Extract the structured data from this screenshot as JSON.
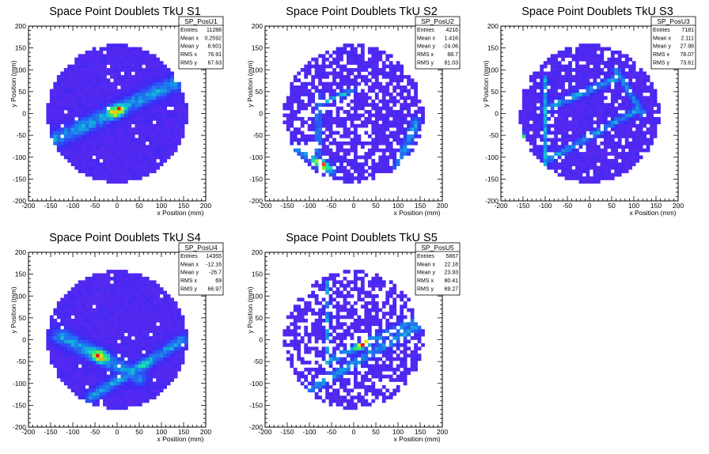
{
  "chart_data": [
    {
      "type": "heatmap",
      "title": "Space Point Doublets TkU S1",
      "xlabel": "x Position (mm)",
      "ylabel": "y Position (mm)",
      "xlim": [
        -200,
        200
      ],
      "ylim": [
        -200,
        200
      ],
      "xticks": [
        "-200",
        "-150",
        "-100",
        "-50",
        "0",
        "50",
        "100",
        "150",
        "200"
      ],
      "yticks": [
        "-200",
        "-150",
        "-100",
        "-50",
        "0",
        "50",
        "100",
        "150",
        "200"
      ],
      "stats": {
        "name": "SP_PosU1",
        "rows": [
          {
            "label": "Entries",
            "value": "11288"
          },
          {
            "label": "Mean x",
            "value": "0.2592"
          },
          {
            "label": "Mean y",
            "value": "8.601"
          },
          {
            "label": "RMS x",
            "value": "76.91"
          },
          {
            "label": "RMS y",
            "value": "67.63"
          }
        ]
      },
      "features": [
        {
          "kind": "band",
          "from": [
            -140,
            -60
          ],
          "to": [
            130,
            70
          ],
          "width": 14,
          "peak": [
            0,
            5
          ],
          "peak_level": 1.0
        }
      ],
      "sparsity": 0.03
    },
    {
      "type": "heatmap",
      "title": "Space Point Doublets TkU S2",
      "xlabel": "x Position (mm)",
      "ylabel": "y Position (mm)",
      "xlim": [
        -200,
        200
      ],
      "ylim": [
        -200,
        200
      ],
      "xticks": [
        "-200",
        "-150",
        "-100",
        "-50",
        "0",
        "50",
        "100",
        "150",
        "200"
      ],
      "yticks": [
        "-200",
        "-150",
        "-100",
        "-50",
        "0",
        "50",
        "100",
        "150",
        "200"
      ],
      "stats": {
        "name": "SP_PosU2",
        "rows": [
          {
            "label": "Entries",
            "value": "4216"
          },
          {
            "label": "Mean x",
            "value": "1.416"
          },
          {
            "label": "Mean y",
            "value": "-24.06"
          },
          {
            "label": "RMS x",
            "value": "88.7"
          },
          {
            "label": "RMS y",
            "value": "81.03"
          }
        ]
      },
      "features": [
        {
          "kind": "band",
          "from": [
            -80,
            -90
          ],
          "to": [
            -80,
            40
          ],
          "width": 5,
          "peak": [
            -80,
            -60
          ],
          "peak_level": 0.5
        },
        {
          "kind": "band",
          "from": [
            -80,
            20
          ],
          "to": [
            0,
            55
          ],
          "width": 5,
          "peak": [
            -20,
            35
          ],
          "peak_level": 0.6
        },
        {
          "kind": "band",
          "from": [
            -130,
            -80
          ],
          "to": [
            -50,
            -130
          ],
          "width": 9,
          "peak": [
            -75,
            -120
          ],
          "peak_level": 1.0
        },
        {
          "kind": "band",
          "from": [
            100,
            -120
          ],
          "to": [
            140,
            -20
          ],
          "width": 8,
          "peak": [
            120,
            -80
          ],
          "peak_level": 0.45
        }
      ],
      "sparsity": 0.28
    },
    {
      "type": "heatmap",
      "title": "Space Point Doublets TkU S3",
      "xlabel": "x Position (mm)",
      "ylabel": "y Position (mm)",
      "xlim": [
        -200,
        200
      ],
      "ylim": [
        -200,
        200
      ],
      "xticks": [
        "-200",
        "-150",
        "-100",
        "-50",
        "0",
        "50",
        "100",
        "150",
        "200"
      ],
      "yticks": [
        "-200",
        "-150",
        "-100",
        "-50",
        "0",
        "50",
        "100",
        "150",
        "200"
      ],
      "stats": {
        "name": "SP_PosU3",
        "rows": [
          {
            "label": "Entries",
            "value": "7181"
          },
          {
            "label": "Mean x",
            "value": "2.111"
          },
          {
            "label": "Mean y",
            "value": "27.98"
          },
          {
            "label": "RMS x",
            "value": "78.07"
          },
          {
            "label": "RMS y",
            "value": "73.61"
          }
        ]
      },
      "features": [
        {
          "kind": "band",
          "from": [
            -100,
            -120
          ],
          "to": [
            -100,
            80
          ],
          "width": 5,
          "peak": [
            -100,
            10
          ],
          "peak_level": 0.55
        },
        {
          "kind": "band",
          "from": [
            -100,
            10
          ],
          "to": [
            60,
            80
          ],
          "width": 7,
          "peak": [
            -30,
            45
          ],
          "peak_level": 0.55
        },
        {
          "kind": "band",
          "from": [
            -100,
            -110
          ],
          "to": [
            110,
            10
          ],
          "width": 6,
          "peak": [
            20,
            -40
          ],
          "peak_level": 0.5
        },
        {
          "kind": "band",
          "from": [
            60,
            100
          ],
          "to": [
            120,
            0
          ],
          "width": 6,
          "peak": [
            90,
            60
          ],
          "peak_level": 0.45
        },
        {
          "kind": "band",
          "from": [
            -160,
            -70
          ],
          "to": [
            -150,
            -50
          ],
          "width": 5,
          "peak": [
            -155,
            -65
          ],
          "peak_level": 1.0
        }
      ],
      "sparsity": 0.12
    },
    {
      "type": "heatmap",
      "title": "Space Point Doublets TkU S4",
      "xlabel": "x Position (mm)",
      "ylabel": "y Position (mm)",
      "xlim": [
        -200,
        200
      ],
      "ylim": [
        -200,
        200
      ],
      "xticks": [
        "-200",
        "-150",
        "-100",
        "-50",
        "0",
        "50",
        "100",
        "150",
        "200"
      ],
      "yticks": [
        "-200",
        "-150",
        "-100",
        "-50",
        "0",
        "50",
        "100",
        "150",
        "200"
      ],
      "stats": {
        "name": "SP_PosU4",
        "rows": [
          {
            "label": "Entries",
            "value": "14355"
          },
          {
            "label": "Mean x",
            "value": "-12.16"
          },
          {
            "label": "Mean y",
            "value": "-26.7"
          },
          {
            "label": "RMS x",
            "value": "69"
          },
          {
            "label": "RMS y",
            "value": "66.97"
          }
        ]
      },
      "features": [
        {
          "kind": "band",
          "from": [
            -130,
            10
          ],
          "to": [
            50,
            -85
          ],
          "width": 14,
          "peak": [
            -40,
            -35
          ],
          "peak_level": 1.0
        },
        {
          "kind": "band",
          "from": [
            -60,
            -130
          ],
          "to": [
            150,
            0
          ],
          "width": 10,
          "peak": [
            70,
            -65
          ],
          "peak_level": 0.75
        }
      ],
      "sparsity": 0.02
    },
    {
      "type": "heatmap",
      "title": "Space Point Doublets TkU S5",
      "xlabel": "x Position (mm)",
      "ylabel": "y Position (mm)",
      "xlim": [
        -200,
        200
      ],
      "ylim": [
        -200,
        200
      ],
      "xticks": [
        "-200",
        "-150",
        "-100",
        "-50",
        "0",
        "50",
        "100",
        "150",
        "200"
      ],
      "yticks": [
        "-200",
        "-150",
        "-100",
        "-50",
        "0",
        "50",
        "100",
        "150",
        "200"
      ],
      "stats": {
        "name": "SP_PosU5",
        "rows": [
          {
            "label": "Entries",
            "value": "5867"
          },
          {
            "label": "Mean x",
            "value": "22.18"
          },
          {
            "label": "Mean y",
            "value": "23.93"
          },
          {
            "label": "RMS x",
            "value": "80.41"
          },
          {
            "label": "RMS y",
            "value": "69.27"
          }
        ]
      },
      "features": [
        {
          "kind": "band",
          "from": [
            -60,
            -70
          ],
          "to": [
            -60,
            130
          ],
          "width": 5,
          "peak": [
            -60,
            -60
          ],
          "peak_level": 0.55
        },
        {
          "kind": "band",
          "from": [
            -60,
            -50
          ],
          "to": [
            150,
            50
          ],
          "width": 7,
          "peak": [
            20,
            -10
          ],
          "peak_level": 1.0
        },
        {
          "kind": "band",
          "from": [
            -110,
            -120
          ],
          "to": [
            160,
            40
          ],
          "width": 8,
          "peak": [
            40,
            -60
          ],
          "peak_level": 0.4
        }
      ],
      "sparsity": 0.35
    }
  ]
}
